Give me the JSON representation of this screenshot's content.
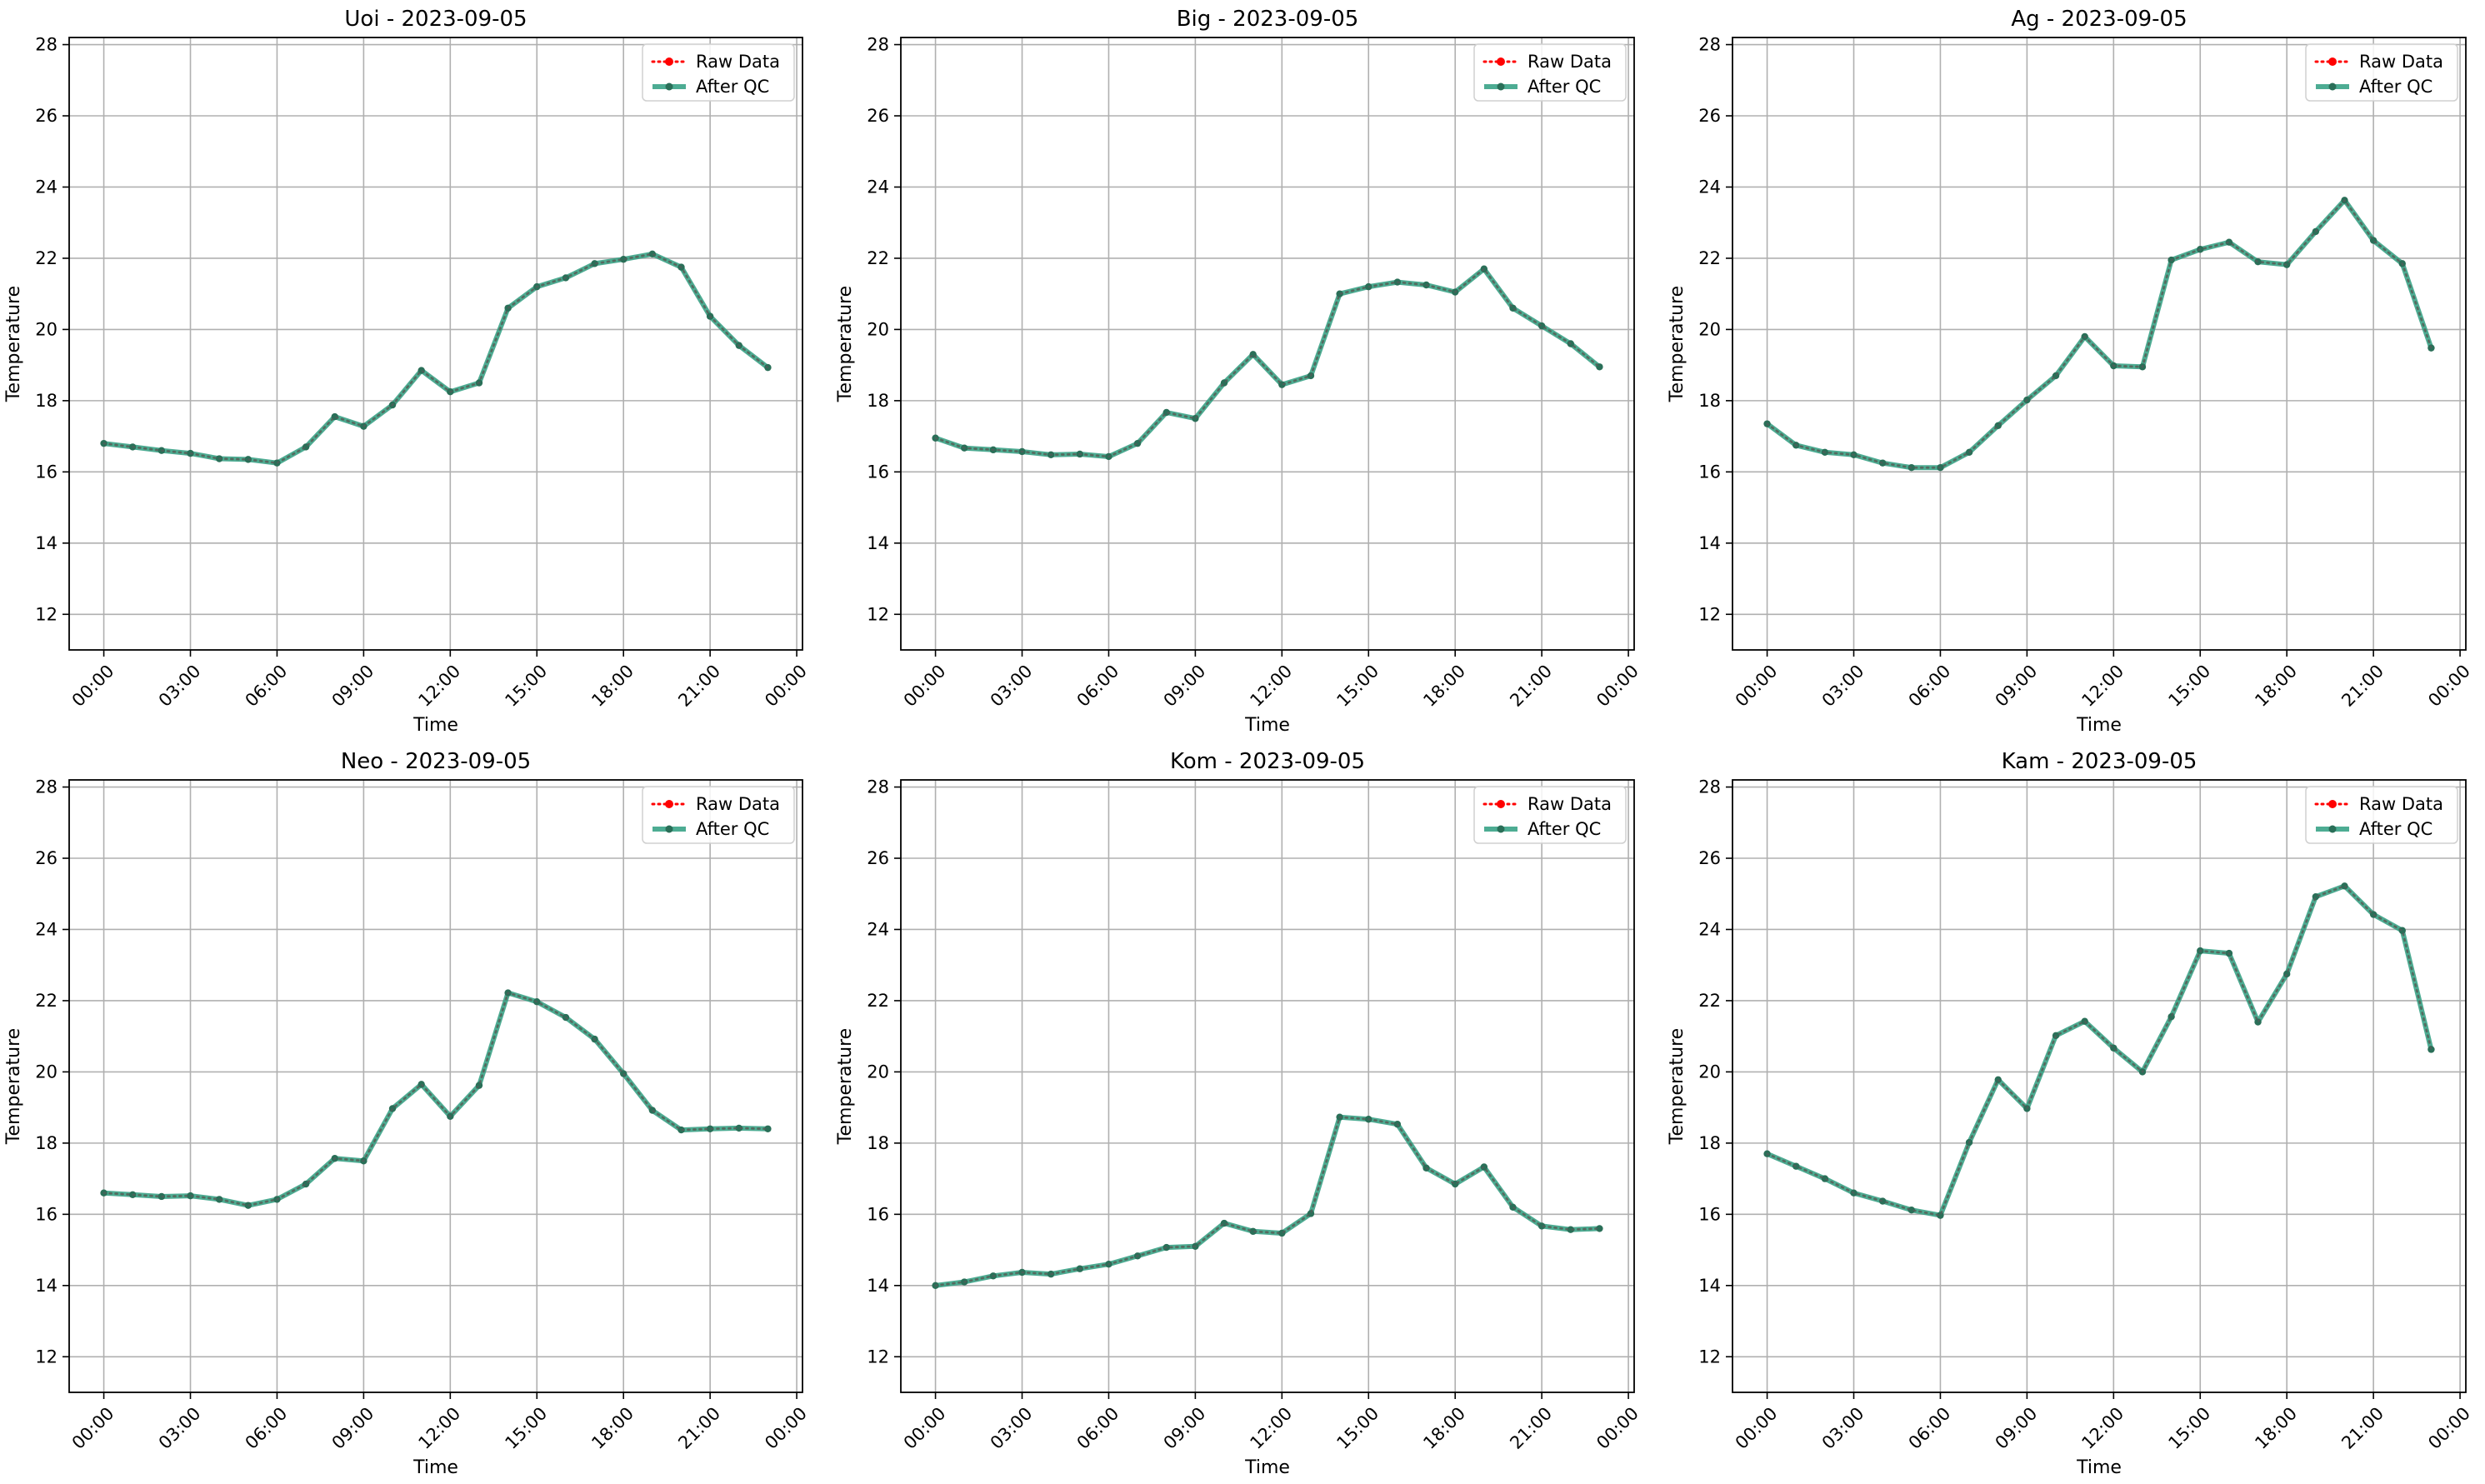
{
  "chart_data": [
    {
      "type": "line",
      "title": "Uoi - 2023-09-05",
      "xlabel": "Time",
      "ylabel": "Temperature",
      "x_ticks": [
        "00:00",
        "03:00",
        "06:00",
        "09:00",
        "12:00",
        "15:00",
        "18:00",
        "21:00",
        "00:00"
      ],
      "y_ticks": [
        12,
        14,
        16,
        18,
        20,
        22,
        24,
        26,
        28
      ],
      "xlim": [
        -1.2,
        24.2
      ],
      "ylim": [
        11,
        28.2
      ],
      "grid": true,
      "legend_position": "top-right",
      "series": [
        {
          "name": "Raw Data",
          "color": "#ff0000",
          "style": "dotted",
          "x": [
            0,
            1,
            2,
            3,
            4,
            5,
            6,
            7,
            8,
            9,
            10,
            11,
            12,
            13,
            14,
            15,
            16,
            17,
            18,
            19,
            20,
            21,
            22,
            23
          ],
          "values": [
            16.8,
            16.7,
            16.6,
            16.52,
            16.37,
            16.35,
            16.25,
            16.7,
            17.55,
            17.28,
            17.88,
            18.85,
            18.25,
            18.5,
            20.6,
            21.2,
            21.45,
            21.85,
            21.97,
            22.12,
            21.75,
            20.37,
            19.55,
            18.93
          ]
        },
        {
          "name": "After QC",
          "color": "#2e9e80",
          "style": "solid",
          "x": [
            0,
            1,
            2,
            3,
            4,
            5,
            6,
            7,
            8,
            9,
            10,
            11,
            12,
            13,
            14,
            15,
            16,
            17,
            18,
            19,
            20,
            21,
            22,
            23
          ],
          "values": [
            16.8,
            16.7,
            16.6,
            16.52,
            16.37,
            16.35,
            16.25,
            16.7,
            17.55,
            17.28,
            17.88,
            18.85,
            18.25,
            18.5,
            20.6,
            21.2,
            21.45,
            21.85,
            21.97,
            22.12,
            21.75,
            20.37,
            19.55,
            18.93
          ]
        }
      ]
    },
    {
      "type": "line",
      "title": "Big - 2023-09-05",
      "xlabel": "Time",
      "ylabel": "Temperature",
      "x_ticks": [
        "00:00",
        "03:00",
        "06:00",
        "09:00",
        "12:00",
        "15:00",
        "18:00",
        "21:00",
        "00:00"
      ],
      "y_ticks": [
        12,
        14,
        16,
        18,
        20,
        22,
        24,
        26,
        28
      ],
      "xlim": [
        -1.2,
        24.2
      ],
      "ylim": [
        11,
        28.2
      ],
      "grid": true,
      "legend_position": "top-right",
      "series": [
        {
          "name": "Raw Data",
          "color": "#ff0000",
          "style": "dotted",
          "x": [
            0,
            1,
            2,
            3,
            4,
            5,
            6,
            7,
            8,
            9,
            10,
            11,
            12,
            13,
            14,
            15,
            16,
            17,
            18,
            19,
            20,
            21,
            22,
            23
          ],
          "values": [
            16.95,
            16.67,
            16.62,
            16.57,
            16.48,
            16.5,
            16.43,
            16.8,
            17.67,
            17.5,
            18.5,
            19.3,
            18.45,
            18.7,
            21.0,
            21.2,
            21.33,
            21.25,
            21.05,
            21.7,
            20.6,
            20.1,
            19.6,
            18.95
          ]
        },
        {
          "name": "After QC",
          "color": "#2e9e80",
          "style": "solid",
          "x": [
            0,
            1,
            2,
            3,
            4,
            5,
            6,
            7,
            8,
            9,
            10,
            11,
            12,
            13,
            14,
            15,
            16,
            17,
            18,
            19,
            20,
            21,
            22,
            23
          ],
          "values": [
            16.95,
            16.67,
            16.62,
            16.57,
            16.48,
            16.5,
            16.43,
            16.8,
            17.67,
            17.5,
            18.5,
            19.3,
            18.45,
            18.7,
            21.0,
            21.2,
            21.33,
            21.25,
            21.05,
            21.7,
            20.6,
            20.1,
            19.6,
            18.95
          ]
        }
      ]
    },
    {
      "type": "line",
      "title": "Ag - 2023-09-05",
      "xlabel": "Time",
      "ylabel": "Temperature",
      "x_ticks": [
        "00:00",
        "03:00",
        "06:00",
        "09:00",
        "12:00",
        "15:00",
        "18:00",
        "21:00",
        "00:00"
      ],
      "y_ticks": [
        12,
        14,
        16,
        18,
        20,
        22,
        24,
        26,
        28
      ],
      "xlim": [
        -1.2,
        24.2
      ],
      "ylim": [
        11,
        28.2
      ],
      "grid": true,
      "legend_position": "top-right",
      "series": [
        {
          "name": "Raw Data",
          "color": "#ff0000",
          "style": "dotted",
          "x": [
            0,
            1,
            2,
            3,
            4,
            5,
            6,
            7,
            8,
            9,
            10,
            11,
            12,
            13,
            14,
            15,
            16,
            17,
            18,
            19,
            20,
            21,
            22,
            23
          ],
          "values": [
            17.35,
            16.75,
            16.55,
            16.48,
            16.25,
            16.12,
            16.12,
            16.55,
            17.3,
            18.02,
            18.7,
            19.8,
            18.98,
            18.95,
            21.95,
            22.25,
            22.45,
            21.9,
            21.82,
            22.75,
            23.63,
            22.5,
            21.85,
            19.48
          ]
        },
        {
          "name": "After QC",
          "color": "#2e9e80",
          "style": "solid",
          "x": [
            0,
            1,
            2,
            3,
            4,
            5,
            6,
            7,
            8,
            9,
            10,
            11,
            12,
            13,
            14,
            15,
            16,
            17,
            18,
            19,
            20,
            21,
            22,
            23
          ],
          "values": [
            17.35,
            16.75,
            16.55,
            16.48,
            16.25,
            16.12,
            16.12,
            16.55,
            17.3,
            18.02,
            18.7,
            19.8,
            18.98,
            18.95,
            21.95,
            22.25,
            22.45,
            21.9,
            21.82,
            22.75,
            23.63,
            22.5,
            21.85,
            19.48
          ]
        }
      ]
    },
    {
      "type": "line",
      "title": "Neo - 2023-09-05",
      "xlabel": "Time",
      "ylabel": "Temperature",
      "x_ticks": [
        "00:00",
        "03:00",
        "06:00",
        "09:00",
        "12:00",
        "15:00",
        "18:00",
        "21:00",
        "00:00"
      ],
      "y_ticks": [
        12,
        14,
        16,
        18,
        20,
        22,
        24,
        26,
        28
      ],
      "xlim": [
        -1.2,
        24.2
      ],
      "ylim": [
        11,
        28.2
      ],
      "grid": true,
      "legend_position": "top-right",
      "series": [
        {
          "name": "Raw Data",
          "color": "#ff0000",
          "style": "dotted",
          "x": [
            0,
            1,
            2,
            3,
            4,
            5,
            6,
            7,
            8,
            9,
            10,
            11,
            12,
            13,
            14,
            15,
            16,
            17,
            18,
            19,
            20,
            21,
            22,
            23
          ],
          "values": [
            16.6,
            16.55,
            16.5,
            16.52,
            16.42,
            16.25,
            16.42,
            16.85,
            17.57,
            17.5,
            18.97,
            19.65,
            18.75,
            19.62,
            22.22,
            21.97,
            21.53,
            20.92,
            19.95,
            18.92,
            18.37,
            18.4,
            18.42,
            18.4
          ]
        },
        {
          "name": "After QC",
          "color": "#2e9e80",
          "style": "solid",
          "x": [
            0,
            1,
            2,
            3,
            4,
            5,
            6,
            7,
            8,
            9,
            10,
            11,
            12,
            13,
            14,
            15,
            16,
            17,
            18,
            19,
            20,
            21,
            22,
            23
          ],
          "values": [
            16.6,
            16.55,
            16.5,
            16.52,
            16.42,
            16.25,
            16.42,
            16.85,
            17.57,
            17.5,
            18.97,
            19.65,
            18.75,
            19.62,
            22.22,
            21.97,
            21.53,
            20.92,
            19.95,
            18.92,
            18.37,
            18.4,
            18.42,
            18.4
          ]
        }
      ]
    },
    {
      "type": "line",
      "title": "Kom - 2023-09-05",
      "xlabel": "Time",
      "ylabel": "Temperature",
      "x_ticks": [
        "00:00",
        "03:00",
        "06:00",
        "09:00",
        "12:00",
        "15:00",
        "18:00",
        "21:00",
        "00:00"
      ],
      "y_ticks": [
        12,
        14,
        16,
        18,
        20,
        22,
        24,
        26,
        28
      ],
      "xlim": [
        -1.2,
        24.2
      ],
      "ylim": [
        11,
        28.2
      ],
      "grid": true,
      "legend_position": "top-right",
      "series": [
        {
          "name": "Raw Data",
          "color": "#ff0000",
          "style": "dotted",
          "x": [
            0,
            1,
            2,
            3,
            4,
            5,
            6,
            7,
            8,
            9,
            10,
            11,
            12,
            13,
            14,
            15,
            16,
            17,
            18,
            19,
            20,
            21,
            22,
            23
          ],
          "values": [
            14.0,
            14.1,
            14.27,
            14.37,
            14.32,
            14.47,
            14.6,
            14.83,
            15.07,
            15.1,
            15.75,
            15.52,
            15.47,
            16.02,
            18.73,
            18.67,
            18.53,
            17.3,
            16.85,
            17.33,
            16.2,
            15.67,
            15.57,
            15.6
          ]
        },
        {
          "name": "After QC",
          "color": "#2e9e80",
          "style": "solid",
          "x": [
            0,
            1,
            2,
            3,
            4,
            5,
            6,
            7,
            8,
            9,
            10,
            11,
            12,
            13,
            14,
            15,
            16,
            17,
            18,
            19,
            20,
            21,
            22,
            23
          ],
          "values": [
            14.0,
            14.1,
            14.27,
            14.37,
            14.32,
            14.47,
            14.6,
            14.83,
            15.07,
            15.1,
            15.75,
            15.52,
            15.47,
            16.02,
            18.73,
            18.67,
            18.53,
            17.3,
            16.85,
            17.33,
            16.2,
            15.67,
            15.57,
            15.6
          ]
        }
      ]
    },
    {
      "type": "line",
      "title": "Kam - 2023-09-05",
      "xlabel": "Time",
      "ylabel": "Temperature",
      "x_ticks": [
        "00:00",
        "03:00",
        "06:00",
        "09:00",
        "12:00",
        "15:00",
        "18:00",
        "21:00",
        "00:00"
      ],
      "y_ticks": [
        12,
        14,
        16,
        18,
        20,
        22,
        24,
        26,
        28
      ],
      "xlim": [
        -1.2,
        24.2
      ],
      "ylim": [
        11,
        28.2
      ],
      "grid": true,
      "legend_position": "top-right",
      "series": [
        {
          "name": "Raw Data",
          "color": "#ff0000",
          "style": "dotted",
          "x": [
            0,
            1,
            2,
            3,
            4,
            5,
            6,
            7,
            8,
            9,
            10,
            11,
            12,
            13,
            14,
            15,
            16,
            17,
            18,
            19,
            20,
            21,
            22,
            23
          ],
          "values": [
            17.7,
            17.35,
            17.0,
            16.6,
            16.37,
            16.12,
            15.97,
            18.02,
            19.78,
            18.97,
            21.02,
            21.42,
            20.67,
            20.0,
            21.55,
            23.4,
            23.33,
            21.4,
            22.75,
            24.92,
            25.22,
            24.42,
            23.97,
            20.63
          ]
        },
        {
          "name": "After QC",
          "color": "#2e9e80",
          "style": "solid",
          "x": [
            0,
            1,
            2,
            3,
            4,
            5,
            6,
            7,
            8,
            9,
            10,
            11,
            12,
            13,
            14,
            15,
            16,
            17,
            18,
            19,
            20,
            21,
            22,
            23
          ],
          "values": [
            17.7,
            17.35,
            17.0,
            16.6,
            16.37,
            16.12,
            15.97,
            18.02,
            19.78,
            18.97,
            21.02,
            21.42,
            20.67,
            20.0,
            21.55,
            23.4,
            23.33,
            21.4,
            22.75,
            24.92,
            25.22,
            24.42,
            23.97,
            20.63
          ]
        }
      ]
    }
  ]
}
